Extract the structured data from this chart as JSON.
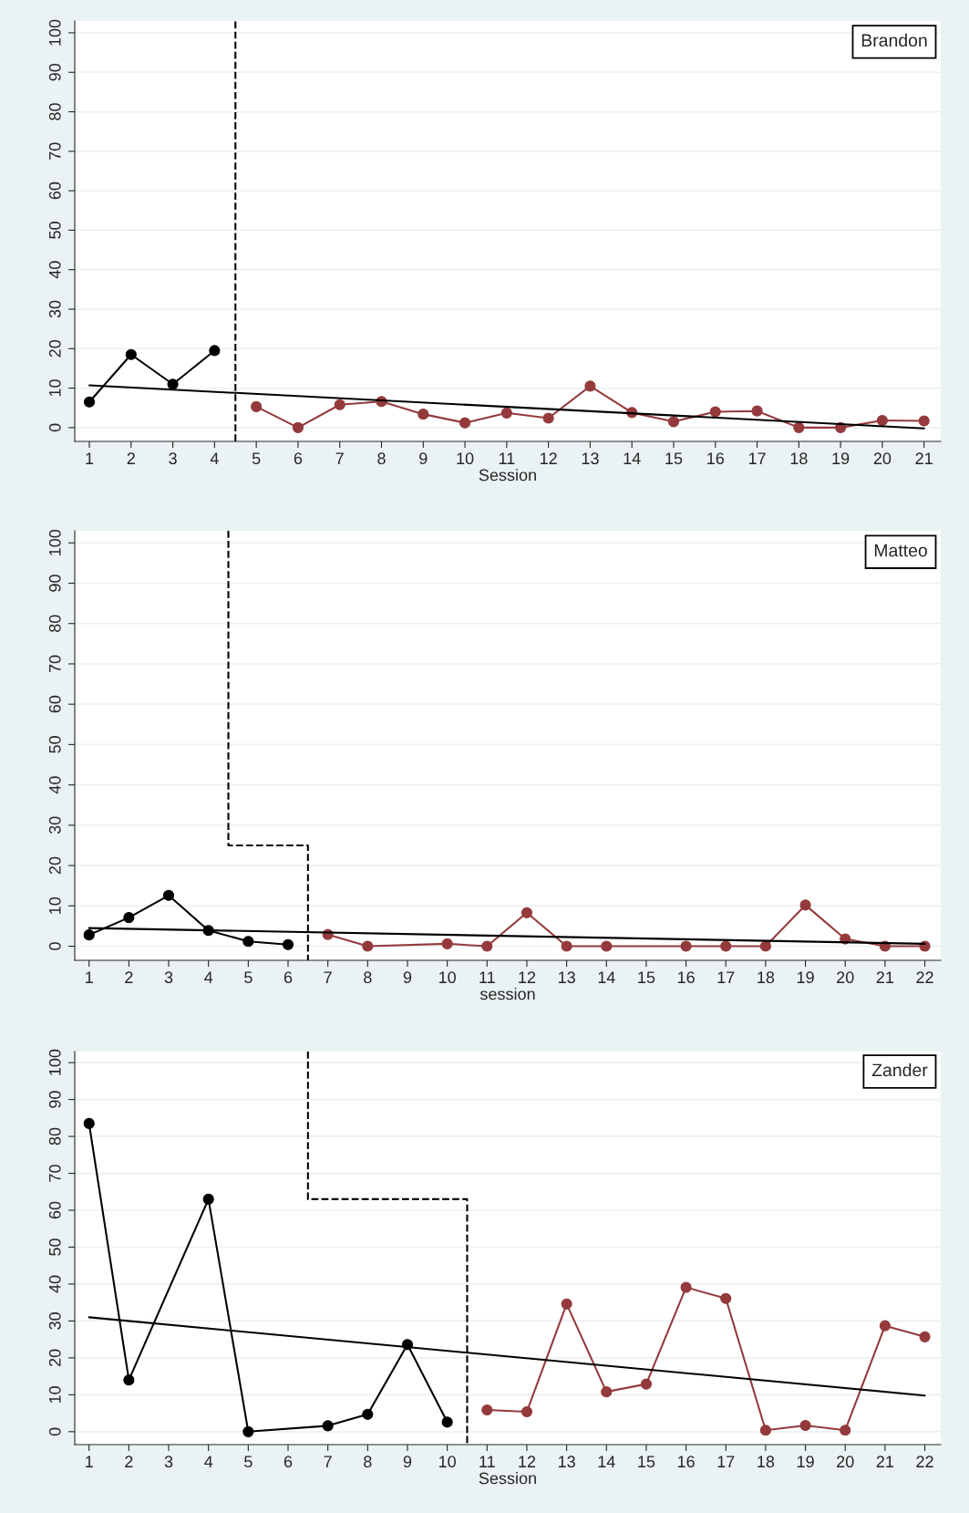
{
  "chart_data": [
    {
      "type": "line",
      "xlabel": "Session",
      "annotations": [
        "Brandon"
      ],
      "xlim": [
        0.65,
        21.4
      ],
      "xticks": [
        1,
        2,
        3,
        4,
        5,
        6,
        7,
        8,
        9,
        10,
        11,
        12,
        13,
        14,
        15,
        16,
        17,
        18,
        19,
        20,
        21
      ],
      "ylim": [
        -3.5,
        103
      ],
      "yticks": [
        0,
        10,
        20,
        30,
        40,
        50,
        60,
        70,
        80,
        90,
        100
      ],
      "grid": "y",
      "marker": "circle",
      "line_style": "solid",
      "ref_lines": [
        {
          "axis": "x",
          "value": 4.5,
          "color": "#000000",
          "line_style": "dashed"
        }
      ],
      "series": [
        {
          "color": "#000000",
          "x": [
            1,
            2,
            3,
            4
          ],
          "values": [
            6.5,
            18.5,
            11,
            19.5
          ]
        },
        {
          "color": "#943a3c",
          "x": [
            5,
            6,
            7,
            8,
            9,
            10,
            11,
            12,
            13,
            14,
            15,
            16,
            17,
            18,
            19,
            20,
            21
          ],
          "values": [
            5.3,
            0,
            5.8,
            6.6,
            3.4,
            1.2,
            3.7,
            2.4,
            10.5,
            3.8,
            1.5,
            4,
            4.2,
            0,
            0,
            1.8,
            1.7
          ]
        },
        {
          "color": "#000000",
          "marker": "none",
          "x": [
            1,
            21
          ],
          "values": [
            10.7,
            -0.2
          ]
        }
      ]
    },
    {
      "type": "line",
      "xlabel": "session",
      "annotations": [
        "Matteo"
      ],
      "xlim": [
        0.64,
        22.4
      ],
      "xticks": [
        1,
        2,
        3,
        4,
        5,
        6,
        7,
        8,
        9,
        10,
        11,
        12,
        13,
        14,
        15,
        16,
        17,
        18,
        19,
        20,
        21,
        22
      ],
      "ylim": [
        -3.5,
        103
      ],
      "yticks": [
        0,
        10,
        20,
        30,
        40,
        50,
        60,
        70,
        80,
        90,
        100
      ],
      "grid": "y",
      "marker": "circle",
      "line_style": "solid",
      "series": [
        {
          "color": "#000000",
          "x": [
            1,
            2,
            3,
            4,
            5,
            6
          ],
          "values": [
            2.8,
            7.1,
            12.6,
            3.9,
            1.2,
            0.4
          ]
        },
        {
          "color": "#943a3c",
          "x": [
            7,
            8,
            10,
            11,
            12,
            13,
            14,
            16,
            17,
            18,
            19,
            20,
            21,
            22
          ],
          "values": [
            2.9,
            0,
            0.6,
            0,
            8.3,
            0,
            0,
            0,
            0,
            0,
            10.2,
            1.8,
            0,
            0
          ]
        },
        {
          "color": "#000000",
          "marker": "none",
          "x": [
            1,
            22
          ],
          "values": [
            4.5,
            0.6
          ]
        },
        {
          "color": "#000000",
          "marker": "none",
          "line_style": "dashed",
          "x": [
            4.5,
            4.5,
            6.5,
            6.5
          ],
          "values": [
            103,
            25,
            25,
            -3.5
          ]
        }
      ]
    },
    {
      "type": "line",
      "xlabel": "Session",
      "annotations": [
        "Zander"
      ],
      "xlim": [
        0.64,
        22.4
      ],
      "xticks": [
        1,
        2,
        3,
        4,
        5,
        6,
        7,
        8,
        9,
        10,
        11,
        12,
        13,
        14,
        15,
        16,
        17,
        18,
        19,
        20,
        21,
        22
      ],
      "ylim": [
        -3.5,
        103
      ],
      "yticks": [
        0,
        10,
        20,
        30,
        40,
        50,
        60,
        70,
        80,
        90,
        100
      ],
      "grid": "y",
      "marker": "circle",
      "line_style": "solid",
      "series": [
        {
          "color": "#000000",
          "x": [
            1,
            2,
            4,
            5,
            7,
            8,
            9,
            10
          ],
          "values": [
            83.5,
            14,
            63,
            0,
            1.6,
            4.7,
            23.6,
            2.6
          ]
        },
        {
          "color": "#943a3c",
          "x": [
            11,
            12,
            13,
            14,
            15,
            16,
            17,
            18,
            19,
            20,
            21,
            22
          ],
          "values": [
            5.9,
            5.4,
            34.6,
            10.8,
            12.9,
            39.1,
            36.1,
            0.4,
            1.7,
            0.4,
            28.7,
            25.7
          ]
        },
        {
          "color": "#000000",
          "marker": "none",
          "x": [
            1,
            22
          ],
          "values": [
            31,
            9.8
          ]
        },
        {
          "color": "#000000",
          "marker": "none",
          "line_style": "dashed",
          "x": [
            6.5,
            6.5,
            10.5,
            10.5
          ],
          "values": [
            103,
            63,
            63,
            -3.5
          ]
        }
      ]
    }
  ]
}
